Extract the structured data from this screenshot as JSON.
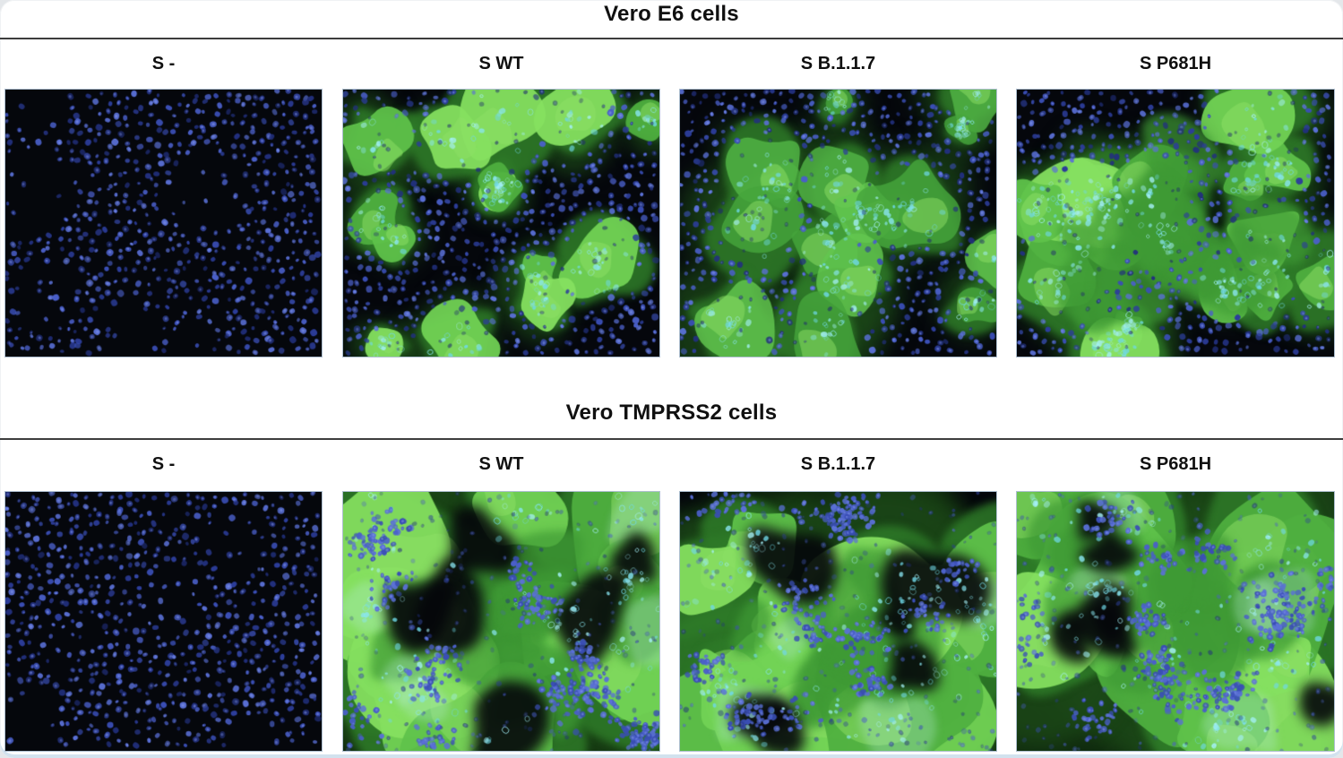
{
  "figure": {
    "sections": [
      {
        "title": "Vero E6 cells",
        "panels": [
          {
            "label": "S -",
            "green_signal": "none",
            "green_coverage": 0,
            "green_tone": ""
          },
          {
            "label": "S WT",
            "green_signal": "patchy",
            "green_coverage": 0.42,
            "green_tone": "bright"
          },
          {
            "label": "S B.1.1.7",
            "green_signal": "patchy",
            "green_coverage": 0.52,
            "green_tone": "dim"
          },
          {
            "label": "S P681H",
            "green_signal": "patchy",
            "green_coverage": 0.62,
            "green_tone": "bright"
          }
        ]
      },
      {
        "title": "Vero TMPRSS2 cells",
        "panels": [
          {
            "label": "S -",
            "green_signal": "none",
            "green_coverage": 0,
            "green_tone": ""
          },
          {
            "label": "S WT",
            "green_signal": "confluent",
            "green_coverage": 0.7,
            "green_tone": "bright"
          },
          {
            "label": "S B.1.1.7",
            "green_signal": "confluent",
            "green_coverage": 0.74,
            "green_tone": "bright"
          },
          {
            "label": "S P681H",
            "green_signal": "confluent",
            "green_coverage": 0.68,
            "green_tone": "bright"
          }
        ]
      }
    ],
    "colors": {
      "nuclei_blue": "#3a4eb5",
      "syncytia_green": "#5fc24a",
      "cyan_accent": "#7fdcec",
      "micrograph_background": "#05070c",
      "divider": "#3d3d3d"
    }
  }
}
